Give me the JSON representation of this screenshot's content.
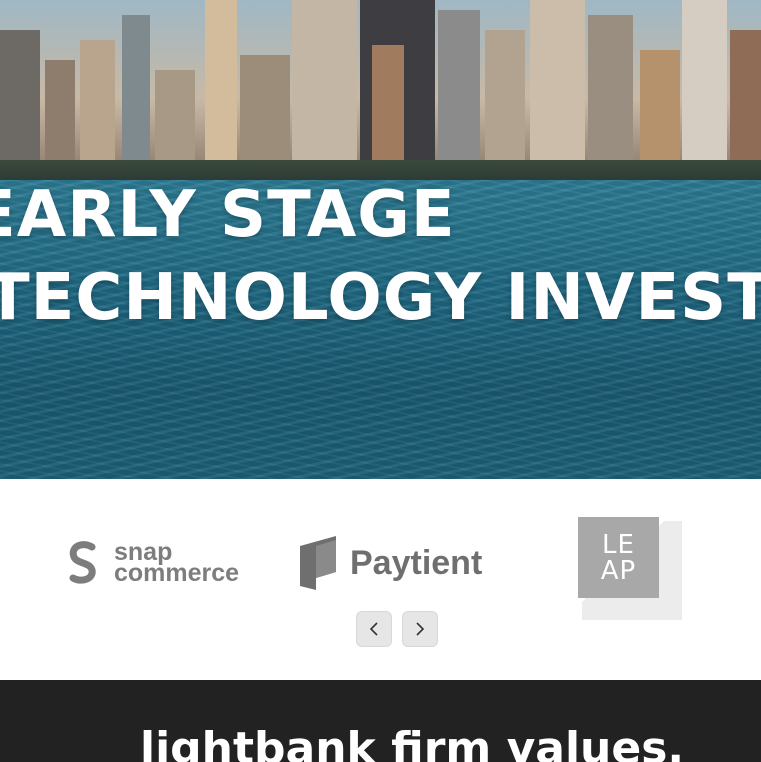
{
  "hero": {
    "line1": "EARLY STAGE",
    "line2": "TECHNOLOGY INVESTORS"
  },
  "logos": {
    "items": [
      {
        "name": "snap commerce",
        "line1": "snap",
        "line2": "commerce",
        "icon": "snap-commerce-logo-icon"
      },
      {
        "name": "Paytient",
        "label": "Paytient",
        "icon": "paytient-logo-icon"
      },
      {
        "name": "LEAP",
        "line1": "LE",
        "line2": "AP",
        "icon": "leap-logo-icon"
      }
    ],
    "prev_icon": "chevron-left-icon",
    "next_icon": "chevron-right-icon"
  },
  "values": {
    "title": "lightbank firm values."
  },
  "colors": {
    "logo_gray": "#7d7d7d",
    "band_dark": "#222222",
    "button_gray": "#e6e6e6"
  }
}
